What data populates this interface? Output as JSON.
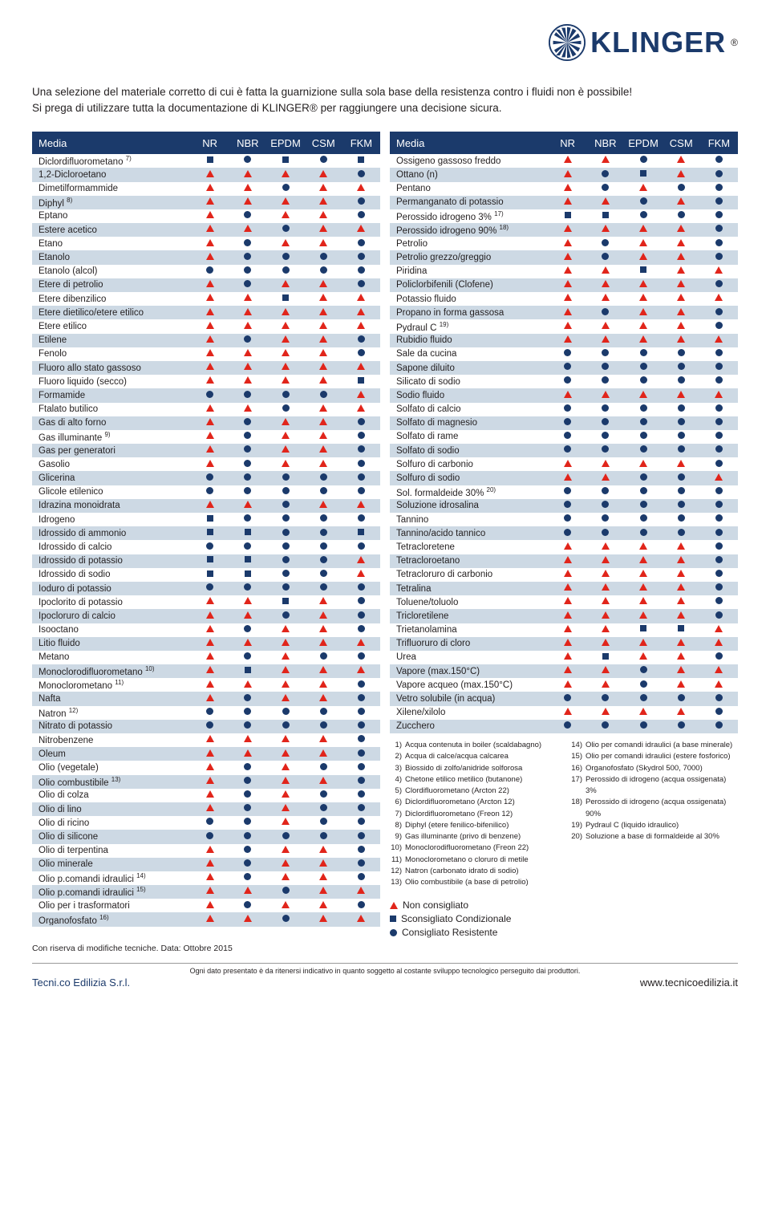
{
  "brand": "KLINGER",
  "intro1": "Una selezione del materiale corretto di cui è fatta la guarnizione sulla sola base della resistenza contro i fluidi non è possibile!",
  "intro2": "Si prega di utilizzare tutta la documentazione di KLINGER® per raggiungere una decisione sicura.",
  "headers": {
    "media": "Media",
    "c": [
      "NR",
      "NBR",
      "EPDM",
      "CSM",
      "FKM"
    ]
  },
  "left": [
    {
      "n": "Diclordifluorometano",
      "s": "7)",
      "v": [
        "s",
        "c",
        "s",
        "c",
        "s"
      ]
    },
    {
      "n": "1,2-Dicloroetano",
      "v": [
        "t",
        "t",
        "t",
        "t",
        "c"
      ]
    },
    {
      "n": "Dimetilformammide",
      "v": [
        "t",
        "t",
        "c",
        "t",
        "t"
      ]
    },
    {
      "n": "Diphyl",
      "s": "8)",
      "v": [
        "t",
        "t",
        "t",
        "t",
        "c"
      ]
    },
    {
      "n": "Eptano",
      "v": [
        "t",
        "c",
        "t",
        "t",
        "c"
      ]
    },
    {
      "n": "Estere acetico",
      "v": [
        "t",
        "t",
        "c",
        "t",
        "t"
      ]
    },
    {
      "n": "Etano",
      "v": [
        "t",
        "c",
        "t",
        "t",
        "c"
      ]
    },
    {
      "n": "Etanolo",
      "v": [
        "t",
        "c",
        "c",
        "c",
        "c"
      ]
    },
    {
      "n": "Etanolo (alcol)",
      "v": [
        "c",
        "c",
        "c",
        "c",
        "c"
      ]
    },
    {
      "n": "Etere di petrolio",
      "v": [
        "t",
        "c",
        "t",
        "t",
        "c"
      ]
    },
    {
      "n": "Etere dibenzilico",
      "v": [
        "t",
        "t",
        "s",
        "t",
        "t"
      ]
    },
    {
      "n": "Etere dietilico/etere etilico",
      "v": [
        "t",
        "t",
        "t",
        "t",
        "t"
      ]
    },
    {
      "n": "Etere etilico",
      "v": [
        "t",
        "t",
        "t",
        "t",
        "t"
      ]
    },
    {
      "n": "Etilene",
      "v": [
        "t",
        "c",
        "t",
        "t",
        "c"
      ]
    },
    {
      "n": "Fenolo",
      "v": [
        "t",
        "t",
        "t",
        "t",
        "c"
      ]
    },
    {
      "n": "Fluoro allo stato gassoso",
      "v": [
        "t",
        "t",
        "t",
        "t",
        "t"
      ]
    },
    {
      "n": "Fluoro liquido (secco)",
      "v": [
        "t",
        "t",
        "t",
        "t",
        "s"
      ]
    },
    {
      "n": "Formamide",
      "v": [
        "c",
        "c",
        "c",
        "c",
        "t"
      ]
    },
    {
      "n": "Ftalato butilico",
      "v": [
        "t",
        "t",
        "c",
        "t",
        "t"
      ]
    },
    {
      "n": "Gas di alto forno",
      "v": [
        "t",
        "c",
        "t",
        "t",
        "c"
      ]
    },
    {
      "n": "Gas illuminante",
      "s": "9)",
      "v": [
        "t",
        "c",
        "t",
        "t",
        "c"
      ]
    },
    {
      "n": "Gas per generatori",
      "v": [
        "t",
        "c",
        "t",
        "t",
        "c"
      ]
    },
    {
      "n": "Gasolio",
      "v": [
        "t",
        "c",
        "t",
        "t",
        "c"
      ]
    },
    {
      "n": "Glicerina",
      "v": [
        "c",
        "c",
        "c",
        "c",
        "c"
      ]
    },
    {
      "n": "Glicole etilenico",
      "v": [
        "c",
        "c",
        "c",
        "c",
        "c"
      ]
    },
    {
      "n": "Idrazina monoidrata",
      "v": [
        "t",
        "t",
        "c",
        "t",
        "t"
      ]
    },
    {
      "n": "Idrogeno",
      "v": [
        "s",
        "c",
        "c",
        "c",
        "c"
      ]
    },
    {
      "n": "Idrossido di ammonio",
      "v": [
        "s",
        "s",
        "c",
        "c",
        "s"
      ]
    },
    {
      "n": "Idrossido di calcio",
      "v": [
        "c",
        "c",
        "c",
        "c",
        "c"
      ]
    },
    {
      "n": "Idrossido di potassio",
      "v": [
        "s",
        "s",
        "c",
        "c",
        "t"
      ]
    },
    {
      "n": "Idrossido di sodio",
      "v": [
        "s",
        "s",
        "c",
        "c",
        "t"
      ]
    },
    {
      "n": "Ioduro di potassio",
      "v": [
        "c",
        "c",
        "c",
        "c",
        "c"
      ]
    },
    {
      "n": "Ipoclorito di potassio",
      "v": [
        "t",
        "t",
        "s",
        "t",
        "c"
      ]
    },
    {
      "n": "Ipocloruro di calcio",
      "v": [
        "t",
        "t",
        "c",
        "t",
        "c"
      ]
    },
    {
      "n": "Isooctano",
      "v": [
        "t",
        "c",
        "t",
        "t",
        "c"
      ]
    },
    {
      "n": "Litio fluido",
      "v": [
        "t",
        "t",
        "t",
        "t",
        "t"
      ]
    },
    {
      "n": "Metano",
      "v": [
        "t",
        "c",
        "t",
        "c",
        "c"
      ]
    },
    {
      "n": "Monoclorodifluorometano",
      "s": "10)",
      "v": [
        "t",
        "s",
        "t",
        "t",
        "t"
      ]
    },
    {
      "n": "Monoclorometano",
      "s": "11)",
      "v": [
        "t",
        "t",
        "t",
        "t",
        "c"
      ]
    },
    {
      "n": "Nafta",
      "v": [
        "t",
        "c",
        "t",
        "t",
        "c"
      ]
    },
    {
      "n": "Natron",
      "s": "12)",
      "v": [
        "c",
        "c",
        "c",
        "c",
        "c"
      ]
    },
    {
      "n": "Nitrato di potassio",
      "v": [
        "c",
        "c",
        "c",
        "c",
        "c"
      ]
    },
    {
      "n": "Nitrobenzene",
      "v": [
        "t",
        "t",
        "t",
        "t",
        "c"
      ]
    },
    {
      "n": "Oleum",
      "v": [
        "t",
        "t",
        "t",
        "t",
        "c"
      ]
    },
    {
      "n": "Olio (vegetale)",
      "v": [
        "t",
        "c",
        "t",
        "c",
        "c"
      ]
    },
    {
      "n": "Olio combustibile",
      "s": "13)",
      "v": [
        "t",
        "c",
        "t",
        "t",
        "c"
      ]
    },
    {
      "n": "Olio di colza",
      "v": [
        "t",
        "c",
        "t",
        "c",
        "c"
      ]
    },
    {
      "n": "Olio di lino",
      "v": [
        "t",
        "c",
        "t",
        "c",
        "c"
      ]
    },
    {
      "n": "Olio di ricino",
      "v": [
        "c",
        "c",
        "t",
        "c",
        "c"
      ]
    },
    {
      "n": "Olio di silicone",
      "v": [
        "c",
        "c",
        "c",
        "c",
        "c"
      ]
    },
    {
      "n": "Olio di terpentina",
      "v": [
        "t",
        "c",
        "t",
        "t",
        "c"
      ]
    },
    {
      "n": "Olio minerale",
      "v": [
        "t",
        "c",
        "t",
        "t",
        "c"
      ]
    },
    {
      "n": "Olio p.comandi idraulici",
      "s": "14)",
      "v": [
        "t",
        "c",
        "t",
        "t",
        "c"
      ]
    },
    {
      "n": "Olio p.comandi idraulici",
      "s": "15)",
      "v": [
        "t",
        "t",
        "c",
        "t",
        "t"
      ]
    },
    {
      "n": "Olio per i trasformatori",
      "v": [
        "t",
        "c",
        "t",
        "t",
        "c"
      ]
    },
    {
      "n": "Organofosfato",
      "s": "16)",
      "v": [
        "t",
        "t",
        "c",
        "t",
        "t"
      ]
    }
  ],
  "right": [
    {
      "n": "Ossigeno gassoso freddo",
      "v": [
        "t",
        "t",
        "c",
        "t",
        "c"
      ]
    },
    {
      "n": "Ottano (n)",
      "v": [
        "t",
        "c",
        "s",
        "t",
        "c"
      ]
    },
    {
      "n": "Pentano",
      "v": [
        "t",
        "c",
        "t",
        "c",
        "c"
      ]
    },
    {
      "n": "Permanganato di potassio",
      "v": [
        "t",
        "t",
        "c",
        "t",
        "c"
      ]
    },
    {
      "n": "Perossido idrogeno 3%",
      "s": "17)",
      "v": [
        "s",
        "s",
        "c",
        "c",
        "c"
      ]
    },
    {
      "n": "Perossido idrogeno 90%",
      "s": "18)",
      "v": [
        "t",
        "t",
        "t",
        "t",
        "c"
      ]
    },
    {
      "n": "Petrolio",
      "v": [
        "t",
        "c",
        "t",
        "t",
        "c"
      ]
    },
    {
      "n": "Petrolio grezzo/greggio",
      "v": [
        "t",
        "c",
        "t",
        "t",
        "c"
      ]
    },
    {
      "n": "Piridina",
      "v": [
        "t",
        "t",
        "s",
        "t",
        "t"
      ]
    },
    {
      "n": "Policlorbifenili (Clofene)",
      "v": [
        "t",
        "t",
        "t",
        "t",
        "c"
      ]
    },
    {
      "n": "Potassio fluido",
      "v": [
        "t",
        "t",
        "t",
        "t",
        "t"
      ]
    },
    {
      "n": "Propano in forma gassosa",
      "v": [
        "t",
        "c",
        "t",
        "t",
        "c"
      ]
    },
    {
      "n": "Pydraul C",
      "s": "19)",
      "v": [
        "t",
        "t",
        "t",
        "t",
        "c"
      ]
    },
    {
      "n": "Rubidio fluido",
      "v": [
        "t",
        "t",
        "t",
        "t",
        "t"
      ]
    },
    {
      "n": "Sale da cucina",
      "v": [
        "c",
        "c",
        "c",
        "c",
        "c"
      ]
    },
    {
      "n": "Sapone diluito",
      "v": [
        "c",
        "c",
        "c",
        "c",
        "c"
      ]
    },
    {
      "n": "Silicato di sodio",
      "v": [
        "c",
        "c",
        "c",
        "c",
        "c"
      ]
    },
    {
      "n": "Sodio fluido",
      "v": [
        "t",
        "t",
        "t",
        "t",
        "t"
      ]
    },
    {
      "n": "Solfato di calcio",
      "v": [
        "c",
        "c",
        "c",
        "c",
        "c"
      ]
    },
    {
      "n": "Solfato di magnesio",
      "v": [
        "c",
        "c",
        "c",
        "c",
        "c"
      ]
    },
    {
      "n": "Solfato di rame",
      "v": [
        "c",
        "c",
        "c",
        "c",
        "c"
      ]
    },
    {
      "n": "Solfato di sodio",
      "v": [
        "c",
        "c",
        "c",
        "c",
        "c"
      ]
    },
    {
      "n": "Solfuro di carbonio",
      "v": [
        "t",
        "t",
        "t",
        "t",
        "c"
      ]
    },
    {
      "n": "Solfuro di sodio",
      "v": [
        "t",
        "t",
        "c",
        "c",
        "t"
      ]
    },
    {
      "n": "Sol. formaldeide 30%",
      "s": "20)",
      "v": [
        "c",
        "c",
        "c",
        "c",
        "c"
      ]
    },
    {
      "n": "Soluzione idrosalina",
      "v": [
        "c",
        "c",
        "c",
        "c",
        "c"
      ]
    },
    {
      "n": "Tannino",
      "v": [
        "c",
        "c",
        "c",
        "c",
        "c"
      ]
    },
    {
      "n": "Tannino/acido tannico",
      "v": [
        "c",
        "c",
        "c",
        "c",
        "c"
      ]
    },
    {
      "n": "Tetracloretene",
      "v": [
        "t",
        "t",
        "t",
        "t",
        "c"
      ]
    },
    {
      "n": "Tetracloroetano",
      "v": [
        "t",
        "t",
        "t",
        "t",
        "c"
      ]
    },
    {
      "n": "Tetracloruro di carbonio",
      "v": [
        "t",
        "t",
        "t",
        "t",
        "c"
      ]
    },
    {
      "n": "Tetralina",
      "v": [
        "t",
        "t",
        "t",
        "t",
        "c"
      ]
    },
    {
      "n": "Toluene/toluolo",
      "v": [
        "t",
        "t",
        "t",
        "t",
        "c"
      ]
    },
    {
      "n": "Tricloretilene",
      "v": [
        "t",
        "t",
        "t",
        "t",
        "c"
      ]
    },
    {
      "n": "Trietanolamina",
      "v": [
        "t",
        "t",
        "s",
        "s",
        "t"
      ]
    },
    {
      "n": "Trifluoruro di cloro",
      "v": [
        "t",
        "t",
        "t",
        "t",
        "t"
      ]
    },
    {
      "n": "Urea",
      "v": [
        "t",
        "s",
        "t",
        "t",
        "c"
      ]
    },
    {
      "n": "Vapore (max.150°C)",
      "v": [
        "t",
        "t",
        "c",
        "t",
        "t"
      ]
    },
    {
      "n": "Vapore acqueo (max.150°C)",
      "v": [
        "t",
        "t",
        "c",
        "t",
        "t"
      ]
    },
    {
      "n": "Vetro solubile (in acqua)",
      "v": [
        "c",
        "c",
        "c",
        "c",
        "c"
      ]
    },
    {
      "n": "Xilene/xilolo",
      "v": [
        "t",
        "t",
        "t",
        "t",
        "c"
      ]
    },
    {
      "n": "Zucchero",
      "v": [
        "c",
        "c",
        "c",
        "c",
        "c"
      ]
    }
  ],
  "fn_left": [
    [
      "1)",
      "Acqua contenuta in boiler (scaldabagno)"
    ],
    [
      "2)",
      "Acqua di calce/acqua calcarea"
    ],
    [
      "3)",
      "Biossido di zolfo/anidride solforosa"
    ],
    [
      "4)",
      "Chetone etilico metilico (butanone)"
    ],
    [
      "5)",
      "Clordifluorometano (Arcton 22)"
    ],
    [
      "6)",
      "Diclordifluorometano (Arcton 12)"
    ],
    [
      "7)",
      "Diclordifluorometano (Freon 12)"
    ],
    [
      "8)",
      "Diphyl (etere fenilico-bifenilico)"
    ],
    [
      "9)",
      "Gas illuminante (privo di benzene)"
    ],
    [
      "10)",
      "Monoclorodifluorometano (Freon 22)"
    ],
    [
      "11)",
      "Monoclorometano o cloruro di metile"
    ],
    [
      "12)",
      "Natron (carbonato idrato di sodio)"
    ],
    [
      "13)",
      "Olio combustibile (a base di petrolio)"
    ]
  ],
  "fn_right": [
    [
      "14)",
      "Olio per comandi idraulici (a base minerale)"
    ],
    [
      "15)",
      "Olio per comandi idraulici (estere fosforico)"
    ],
    [
      "16)",
      "Organofosfato (Skydrol 500, 7000)"
    ],
    [
      "17)",
      "Perossido di idrogeno (acqua ossigenata) 3%"
    ],
    [
      "18)",
      "Perossido di idrogeno (acqua ossigenata) 90%"
    ],
    [
      "19)",
      "Pydraul C (liquido idraulico)"
    ],
    [
      "20)",
      "Soluzione a base di formaldeide al 30%"
    ]
  ],
  "legend": {
    "t": "Non consigliato",
    "s": "Sconsigliato Condizionale",
    "c": "Consigliato Resistente"
  },
  "note": "Con riserva di modifiche tecniche. Data: Ottobre 2015",
  "disclaimer": "Ogni dato presentato è da ritenersi indicativo in quanto soggetto al costante sviluppo tecnologico perseguito dai produttori.",
  "company": "Tecni.co Edilizia S.r.l.",
  "site": "www.tecnicoedilizia.it"
}
